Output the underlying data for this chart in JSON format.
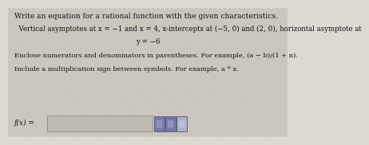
{
  "title_line": "Write an equation for a rational function with the given characteristics.",
  "body_line1": "  Vertical asymptotes at x = −1 and x = 4, x-intercepts at (−5, 0) and (2, 0), horizontal asymptote at",
  "body_line2": "y = −6",
  "instruction1": "Enclose numerators and denominators in parentheses. For example, (a − b)/(1 + n).",
  "instruction2": "Include a multiplication sign between symbols. For example, a * x.",
  "fx_label": "f(x) =",
  "bg_color_light": "#dedad2",
  "bg_color_dark": "#ccc8c0",
  "stripe_color": "#cac6be",
  "text_color": "#111111",
  "box_facecolor": "#bfbbb3",
  "box_edgecolor": "#999990",
  "icon1_face": "#7878b0",
  "icon2_face": "#7878b0",
  "icon3_face": "#b0b0c8",
  "icon_edge": "#555578",
  "title_fontsize": 6.5,
  "body_fontsize": 6.2,
  "instr_fontsize": 6.0,
  "label_fontsize": 6.5
}
